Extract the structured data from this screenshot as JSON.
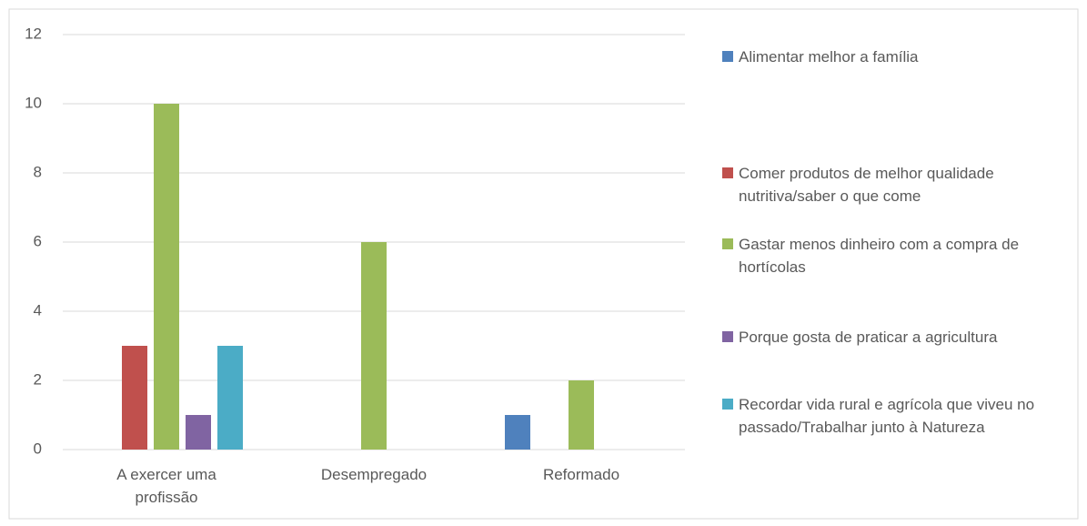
{
  "chart_data": {
    "type": "bar",
    "categories": [
      "A exercer uma profissão",
      "Desempregado",
      "Reformado"
    ],
    "series": [
      {
        "name": "Alimentar melhor a família",
        "color": "#4f81bd",
        "values": [
          0,
          0,
          1
        ]
      },
      {
        "name": "Comer produtos de melhor qualidade nutritiva/saber o que come",
        "color": "#c0504d",
        "values": [
          3,
          0,
          0
        ]
      },
      {
        "name": "Gastar menos dinheiro com a compra de hortícolas",
        "color": "#9bbb59",
        "values": [
          10,
          6,
          2
        ]
      },
      {
        "name": "Porque gosta de praticar a agricultura",
        "color": "#8064a2",
        "values": [
          1,
          0,
          0
        ]
      },
      {
        "name": "Recordar vida rural e agrícola que viveu no passado/Trabalhar junto à Natureza",
        "color": "#4bacc6",
        "values": [
          3,
          0,
          0
        ]
      }
    ],
    "ylim": [
      0,
      12
    ],
    "yticks": [
      0,
      2,
      4,
      6,
      8,
      10,
      12
    ],
    "grid": true,
    "legend": "right"
  }
}
